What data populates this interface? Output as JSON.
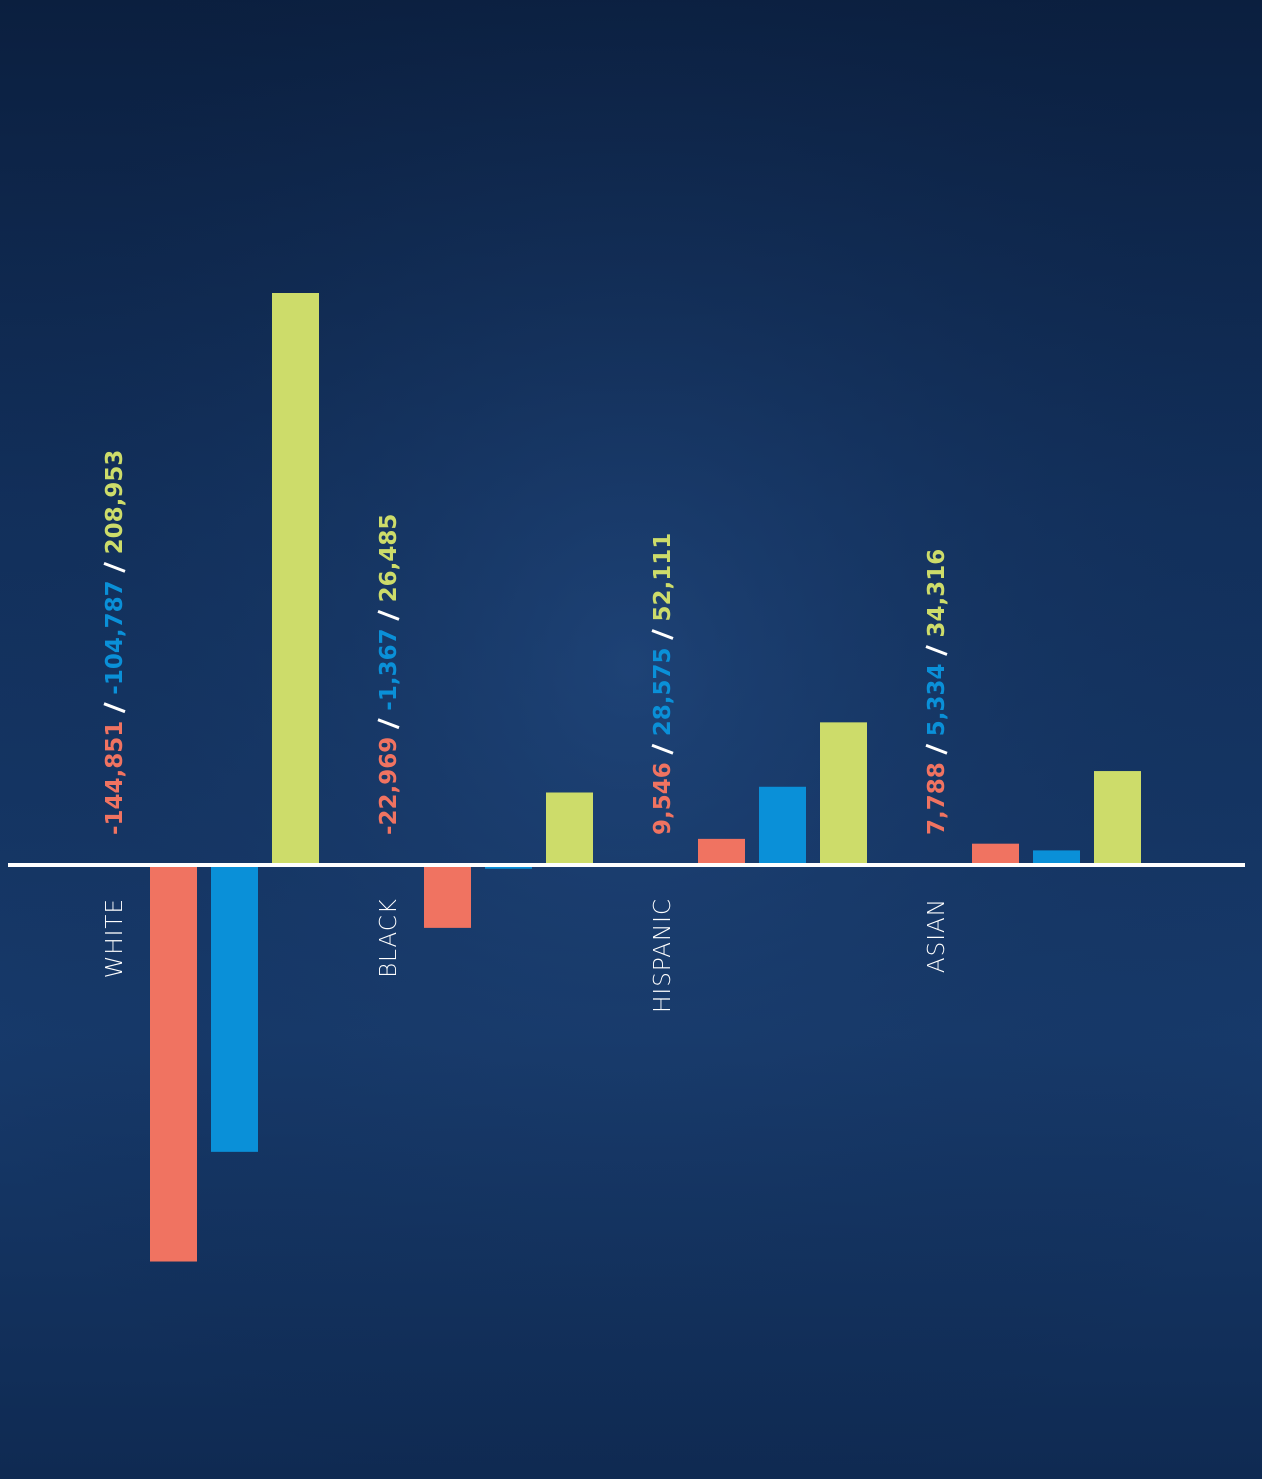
{
  "chart_data": {
    "type": "bar",
    "categories": [
      "WHITE",
      "BLACK",
      "HISPANIC",
      "ASIAN"
    ],
    "series": [
      {
        "color": "#f07361",
        "values": [
          -144851,
          -22969,
          9546,
          7788
        ],
        "value_labels": [
          "-144,851",
          "-22,969",
          "9,546",
          "7,788"
        ]
      },
      {
        "color": "#0a90d8",
        "values": [
          -104787,
          -1367,
          28575,
          5334
        ],
        "value_labels": [
          "-104,787",
          "-1,367",
          "28,575",
          "5,334"
        ]
      },
      {
        "color": "#cddc6a",
        "values": [
          208953,
          26485,
          52111,
          34316
        ],
        "value_labels": [
          "208,953",
          "26,485",
          "52,111",
          "34,316"
        ]
      }
    ]
  }
}
